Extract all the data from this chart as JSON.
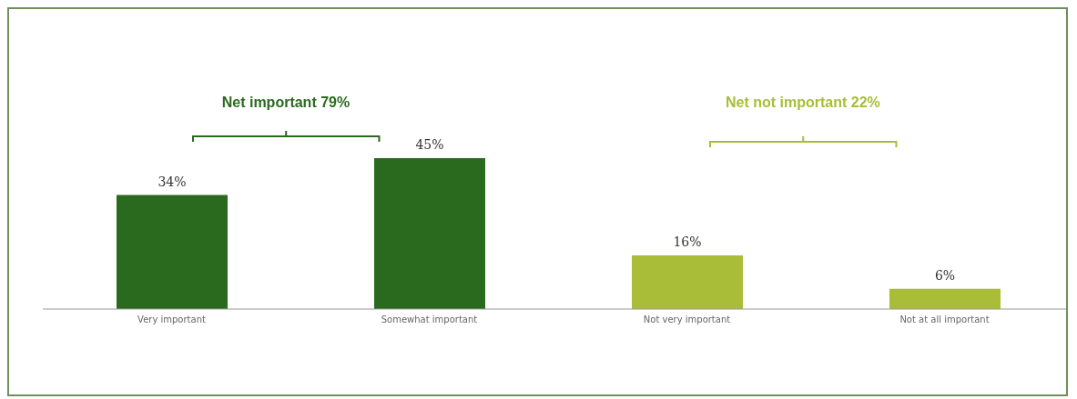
{
  "chart_data": {
    "type": "bar",
    "categories": [
      "Very important",
      "Somewhat important",
      "Not very important",
      "Not at all important"
    ],
    "values": [
      34,
      45,
      16,
      6
    ],
    "value_labels": [
      "34%",
      "45%",
      "16%",
      "6%"
    ],
    "colors": [
      "#2a6a1e",
      "#2a6a1e",
      "#a9bd38",
      "#a9bd38"
    ],
    "annotations": [
      "Net important 79%",
      "Net not important 22%"
    ]
  }
}
